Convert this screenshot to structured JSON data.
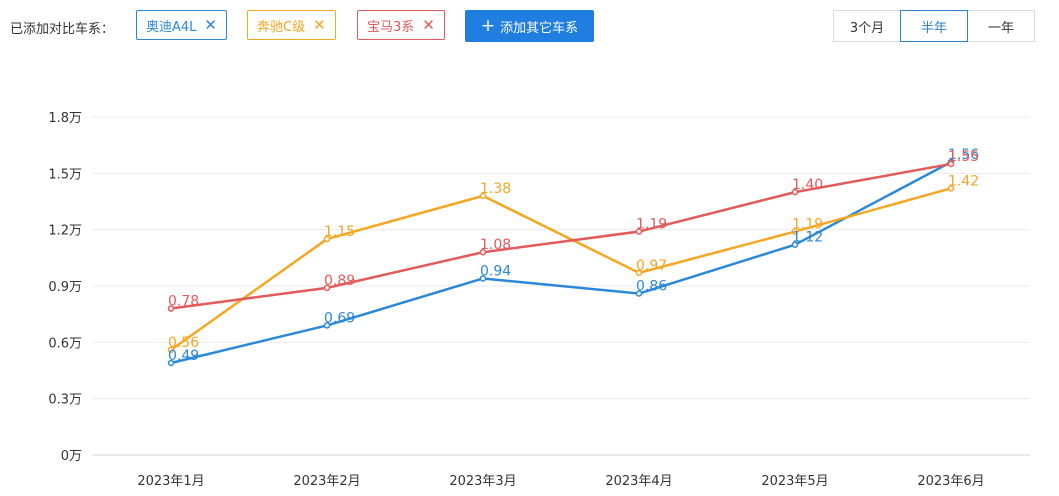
{
  "toolbar": {
    "added_label": "已添加对比车系：",
    "chips": [
      {
        "label": "奥迪A4L",
        "color": "#2b88d8",
        "icon": "close-icon"
      },
      {
        "label": "奔驰C级",
        "color": "#f5a623",
        "icon": "close-icon"
      },
      {
        "label": "宝马3系",
        "color": "#e45a5a",
        "icon": "close-icon"
      }
    ],
    "add_button": {
      "icon": "plus-icon",
      "label": "添加其它车系"
    },
    "ranges": [
      {
        "label": "3个月",
        "active": false
      },
      {
        "label": "半年",
        "active": true
      },
      {
        "label": "一年",
        "active": false
      }
    ]
  },
  "chart_data": {
    "type": "line",
    "title": "",
    "xlabel": "",
    "ylabel": "",
    "categories": [
      "2023年1月",
      "2023年2月",
      "2023年3月",
      "2023年4月",
      "2023年5月",
      "2023年6月"
    ],
    "yticks": [
      "0万",
      "0.3万",
      "0.6万",
      "0.9万",
      "1.2万",
      "1.5万",
      "1.8万"
    ],
    "ylim": [
      0,
      1.8
    ],
    "grid": true,
    "series": [
      {
        "name": "奥迪A4L",
        "color": "#2b88d8",
        "values": [
          0.49,
          0.69,
          0.94,
          0.86,
          1.12,
          1.56
        ]
      },
      {
        "name": "奔驰C级",
        "color": "#f5a623",
        "values": [
          0.56,
          1.15,
          1.38,
          0.97,
          1.19,
          1.42
        ]
      },
      {
        "name": "宝马3系",
        "color": "#e45a5a",
        "values": [
          0.78,
          0.89,
          1.08,
          1.19,
          1.4,
          1.55
        ]
      }
    ],
    "data_labels": [
      [
        "0.49",
        "0.69",
        "0.94",
        "0.86",
        "1.12",
        "1.56"
      ],
      [
        "0.56",
        "1.15",
        "1.38",
        "0.97",
        "1.19",
        "1.42"
      ],
      [
        "0.78",
        "0.89",
        "1.08",
        "1.19",
        "1.40",
        "1.55"
      ]
    ]
  }
}
